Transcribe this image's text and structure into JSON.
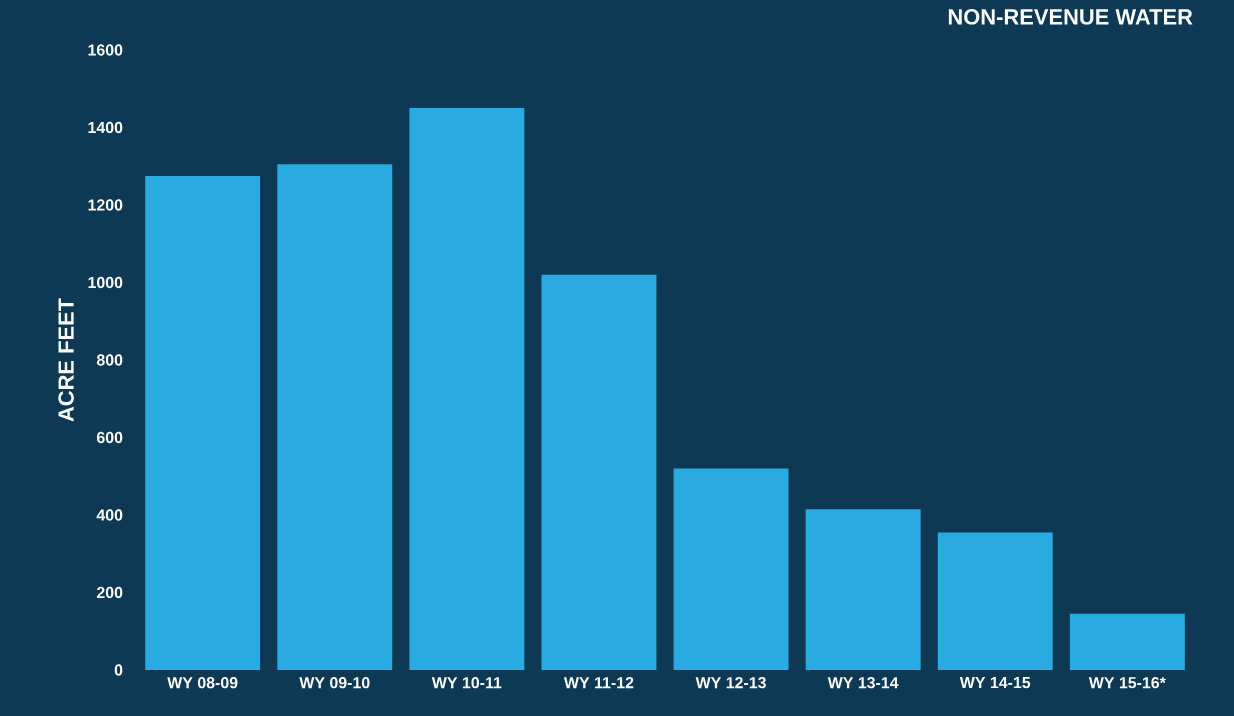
{
  "chart_data": {
    "type": "bar",
    "title": "NON-REVENUE WATER",
    "ylabel": "ACRE FEET",
    "categories": [
      "WY 08-09",
      "WY 09-10",
      "WY 10-11",
      "WY 11-12",
      "WY 12-13",
      "WY 13-14",
      "WY 14-15",
      "WY 15-16*"
    ],
    "values": [
      1275,
      1305,
      1450,
      1020,
      520,
      415,
      355,
      145
    ],
    "color": "#29abe2",
    "ylim": [
      0,
      1600
    ],
    "yticks": [
      0,
      200,
      400,
      600,
      800,
      1000,
      1200,
      1400,
      1600
    ],
    "grid": false
  }
}
